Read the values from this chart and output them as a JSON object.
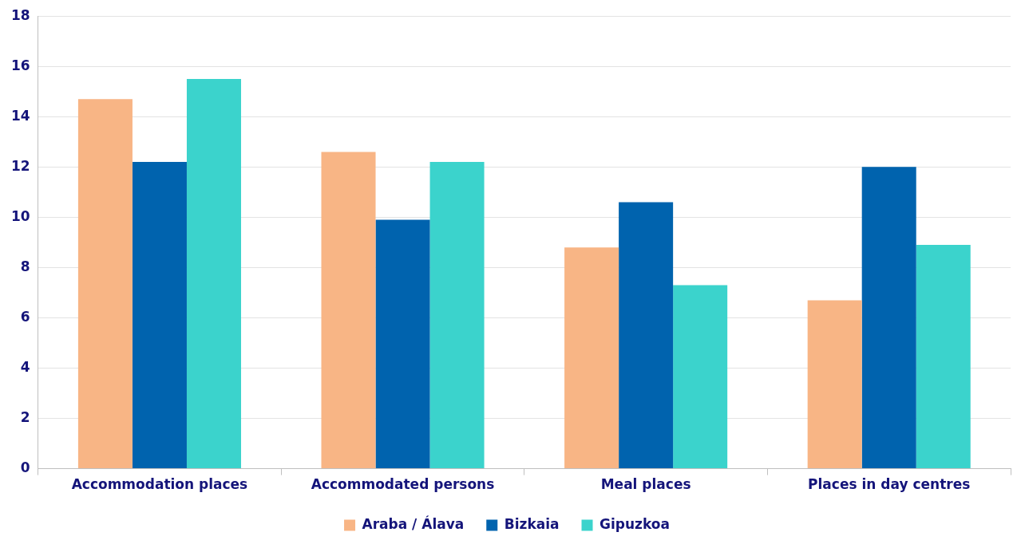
{
  "chart_data": {
    "type": "bar",
    "categories": [
      "Accommodation places",
      "Accommodated persons",
      "Meal places",
      "Places in day centres"
    ],
    "series": [
      {
        "name": "Araba / Álava",
        "color": "#f8b585",
        "values": [
          14.7,
          12.6,
          8.8,
          6.7
        ]
      },
      {
        "name": "Bizkaia",
        "color": "#0063ae",
        "values": [
          12.2,
          9.9,
          10.6,
          12.0
        ]
      },
      {
        "name": "Gipuzkoa",
        "color": "#3bd3cc",
        "values": [
          15.5,
          12.2,
          7.3,
          8.9
        ]
      }
    ],
    "ylim": [
      0,
      18
    ],
    "yticks": [
      0,
      2,
      4,
      6,
      8,
      10,
      12,
      14,
      16,
      18
    ],
    "grid": "y",
    "legend": "bottom"
  }
}
